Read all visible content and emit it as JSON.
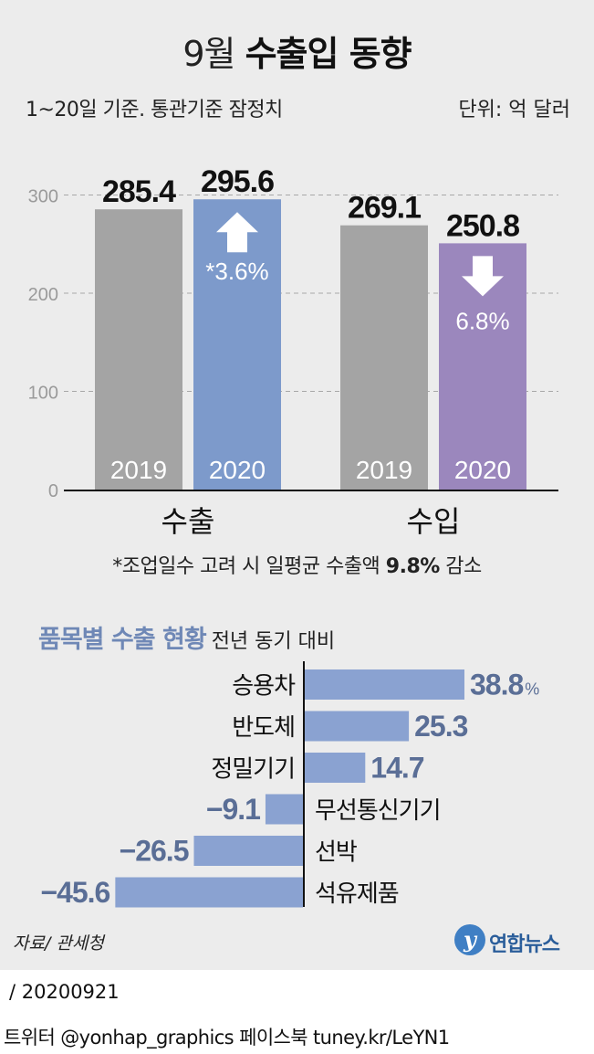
{
  "header": {
    "title_light": "9월",
    "title_bold": "수출입 동향",
    "subtitle": "1~20일 기준. 통관기준 잠정치",
    "unit": "단위: 억 달러"
  },
  "colors": {
    "background": "#ececec",
    "bar_2019": "#a4a4a4",
    "bar_export_2020": "#7d9acb",
    "bar_import_2020": "#9b87bd",
    "hbar": "#8aa2d1",
    "accent": "#6f88b6"
  },
  "footnote": {
    "prefix": "*조업일수 고려 시 일평균 수출액 ",
    "value": "9.8%",
    "suffix": " 감소"
  },
  "section": {
    "title": "품목별 수출 현황",
    "subtitle": "전년 동기 대비"
  },
  "chart_data": [
    {
      "type": "bar",
      "title": "9월 수출입 동향",
      "unit": "억 달러",
      "categories": [
        "수출",
        "수입"
      ],
      "series": [
        {
          "name": "2019",
          "values": [
            285.4,
            269.1
          ]
        },
        {
          "name": "2020",
          "values": [
            295.6,
            250.8
          ]
        }
      ],
      "value_labels": [
        [
          "285.4",
          "269.1"
        ],
        [
          "295.6",
          "250.8"
        ]
      ],
      "change_labels": [
        "*3.6%",
        "6.8%"
      ],
      "change_direction": [
        "up",
        "down"
      ],
      "ylim": [
        0,
        300
      ],
      "yticks": [
        0,
        100,
        200,
        300
      ],
      "grid": true
    },
    {
      "type": "bar",
      "orientation": "horizontal",
      "title": "품목별 수출 현황",
      "subtitle": "전년 동기 대비",
      "categories": [
        "승용차",
        "반도체",
        "정밀기기",
        "무선통신기기",
        "선박",
        "석유제품"
      ],
      "values": [
        38.8,
        25.3,
        14.7,
        -9.1,
        -26.5,
        -45.6
      ],
      "value_labels": [
        "38.8",
        "25.3",
        "14.7",
        "−9.1",
        "−26.5",
        "−45.6"
      ],
      "unit_label": "%"
    }
  ],
  "footer": {
    "source": "자료/ 관세청",
    "logo_mark": "y",
    "logo_text": "연합뉴스",
    "date": "/ 20200921",
    "credit": "트위터 @yonhap_graphics  페이스북 tuney.kr/LeYN1"
  }
}
